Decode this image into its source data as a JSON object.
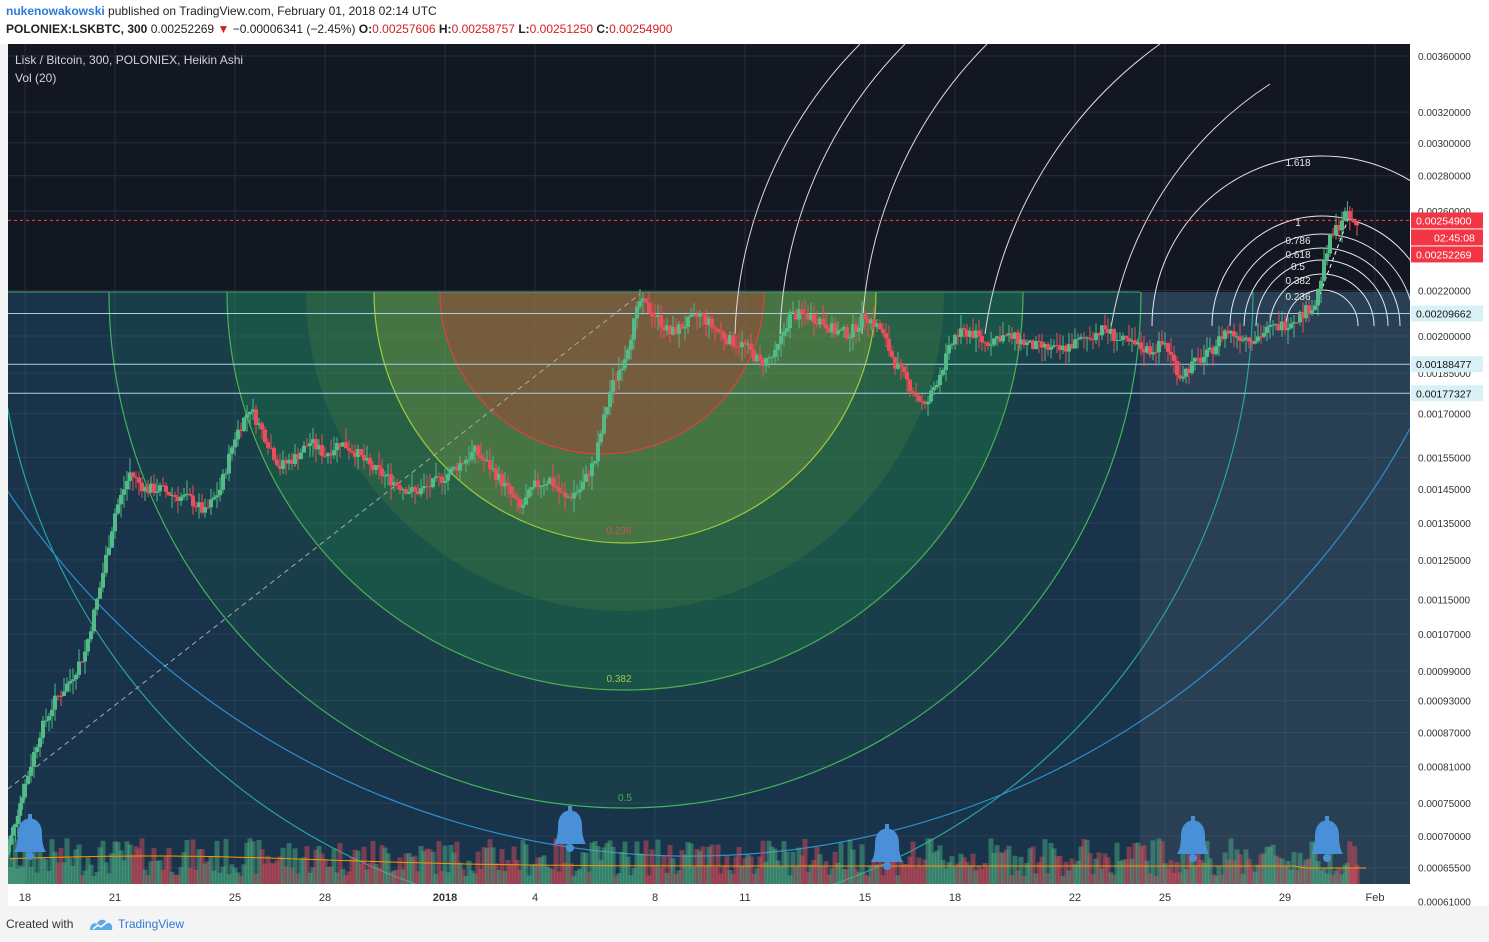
{
  "header": {
    "author": "nukenowakowski",
    "published_text": "published on TradingView.com, February 01, 2018 02:14 UTC",
    "symbol": "POLONIEX:LSKBTC, 300",
    "last": "0.00252269",
    "change_icon": "triangle-down-icon",
    "change": "−0.00006341 (−2.45%)",
    "o_label": "O:",
    "o_value": "0.00257606",
    "h_label": "H:",
    "h_value": "0.00258757",
    "l_label": "L:",
    "l_value": "0.00251250",
    "c_label": "C:",
    "c_value": "0.00254900"
  },
  "legend": {
    "title": "Lisk / Bitcoin, 300, POLONIEX, Heikin Ashi",
    "vol": "Vol (20)"
  },
  "footer": {
    "created_with": "Created with",
    "brand": "TradingView",
    "logo_icon": "tradingview-logo-icon"
  },
  "colors": {
    "background": "#131722",
    "up": "#53b987",
    "down": "#eb4d5c",
    "price_line": "#f23645",
    "axis_text": "#333333"
  },
  "chart_data": {
    "type": "candlestick",
    "title": "Lisk / Bitcoin, 300, POLONIEX, Heikin Ashi",
    "y_scale": "log",
    "ylim": [
      0.00056,
      0.0037
    ],
    "y_ticks": [
      "0.00360000",
      "0.00320000",
      "0.00300000",
      "0.00280000",
      "0.00260000",
      "0.00220000",
      "0.00200000",
      "0.00185000",
      "0.00170000",
      "0.00155000",
      "0.00145000",
      "0.00135000",
      "0.00125000",
      "0.00115000",
      "0.00107000",
      "0.00099000",
      "0.00093000",
      "0.00087000",
      "0.00081000",
      "0.00075000",
      "0.00070000",
      "0.00065500",
      "0.00061000"
    ],
    "x_ticks": [
      {
        "label": "18",
        "day": 18
      },
      {
        "label": "21",
        "day": 21
      },
      {
        "label": "25",
        "day": 25
      },
      {
        "label": "28",
        "day": 28
      },
      {
        "label": "2018",
        "day": 32,
        "bold": true
      },
      {
        "label": "4",
        "day": 35
      },
      {
        "label": "8",
        "day": 39
      },
      {
        "label": "11",
        "day": 42
      },
      {
        "label": "15",
        "day": 46
      },
      {
        "label": "18",
        "day": 49
      },
      {
        "label": "22",
        "day": 53
      },
      {
        "label": "25",
        "day": 56
      },
      {
        "label": "29",
        "day": 60
      },
      {
        "label": "Feb",
        "day": 63
      }
    ],
    "price_labels": [
      {
        "value": 0.002549,
        "text": "0.00254900",
        "kind": "close"
      },
      {
        "value": 0.002549,
        "text": "02:45:08",
        "kind": "countdown"
      },
      {
        "value": 0.00252269,
        "text": "0.00252269",
        "kind": "last"
      },
      {
        "value": 0.00209662,
        "text": "0.00209662",
        "kind": "level"
      },
      {
        "value": 0.00188477,
        "text": "0.00188477",
        "kind": "level"
      },
      {
        "value": 0.00177327,
        "text": "0.00177327",
        "kind": "level"
      }
    ],
    "fib_big": [
      "0.236",
      "0.382",
      "0.5"
    ],
    "fib_small": [
      "1.618",
      "1",
      "0.786",
      "0.618",
      "0.5",
      "0.382",
      "0.236"
    ],
    "series": [
      {
        "name": "Price (Heikin Ashi close, approx.)",
        "points": [
          [
            17.2,
            0.00065
          ],
          [
            17.6,
            0.00071
          ],
          [
            18,
            0.00078
          ],
          [
            18.5,
            0.00087
          ],
          [
            19,
            0.00093
          ],
          [
            19.5,
            0.00097
          ],
          [
            20,
            0.00103
          ],
          [
            20.5,
            0.00118
          ],
          [
            21,
            0.00138
          ],
          [
            21.5,
            0.0015
          ],
          [
            22,
            0.00145
          ],
          [
            22.5,
            0.00145
          ],
          [
            23,
            0.00143
          ],
          [
            23.5,
            0.00142
          ],
          [
            24,
            0.00138
          ],
          [
            24.5,
            0.00145
          ],
          [
            25,
            0.00162
          ],
          [
            25.5,
            0.00172
          ],
          [
            26,
            0.00162
          ],
          [
            26.5,
            0.00152
          ],
          [
            27,
            0.00155
          ],
          [
            27.5,
            0.0016
          ],
          [
            28,
            0.00156
          ],
          [
            28.5,
            0.0016
          ],
          [
            29,
            0.00157
          ],
          [
            29.5,
            0.00152
          ],
          [
            30,
            0.00149
          ],
          [
            30.5,
            0.00146
          ],
          [
            31,
            0.00144
          ],
          [
            31.5,
            0.00146
          ],
          [
            32,
            0.00149
          ],
          [
            32.5,
            0.00153
          ],
          [
            33,
            0.00157
          ],
          [
            33.5,
            0.00152
          ],
          [
            34,
            0.00146
          ],
          [
            34.5,
            0.00139
          ],
          [
            35,
            0.00146
          ],
          [
            35.5,
            0.00148
          ],
          [
            36,
            0.00142
          ],
          [
            36.5,
            0.00145
          ],
          [
            37,
            0.00154
          ],
          [
            37.5,
            0.00178
          ],
          [
            38,
            0.00192
          ],
          [
            38.5,
            0.00215
          ],
          [
            39,
            0.00209
          ],
          [
            39.5,
            0.00201
          ],
          [
            40,
            0.00205
          ],
          [
            40.5,
            0.00209
          ],
          [
            41,
            0.00203
          ],
          [
            41.5,
            0.00198
          ],
          [
            42,
            0.00196
          ],
          [
            42.5,
            0.00189
          ],
          [
            43,
            0.00192
          ],
          [
            43.5,
            0.00209
          ],
          [
            44,
            0.00209
          ],
          [
            44.5,
            0.00207
          ],
          [
            45,
            0.00202
          ],
          [
            45.5,
            0.00201
          ],
          [
            46,
            0.00209
          ],
          [
            46.5,
            0.00203
          ],
          [
            47,
            0.00189
          ],
          [
            47.5,
            0.0018
          ],
          [
            48,
            0.00172
          ],
          [
            48.5,
            0.00185
          ],
          [
            49,
            0.002
          ],
          [
            49.5,
            0.00202
          ],
          [
            50,
            0.00197
          ],
          [
            50.5,
            0.002
          ],
          [
            51,
            0.00199
          ],
          [
            51.5,
            0.00196
          ],
          [
            52,
            0.00195
          ],
          [
            52.5,
            0.00194
          ],
          [
            53,
            0.00197
          ],
          [
            53.5,
            0.002
          ],
          [
            54,
            0.00203
          ],
          [
            54.5,
            0.00198
          ],
          [
            55,
            0.00196
          ],
          [
            55.5,
            0.00194
          ],
          [
            56,
            0.00197
          ],
          [
            56.5,
            0.00184
          ],
          [
            57,
            0.00189
          ],
          [
            57.5,
            0.00193
          ],
          [
            58,
            0.00202
          ],
          [
            58.5,
            0.002
          ],
          [
            59,
            0.00199
          ],
          [
            59.5,
            0.00203
          ],
          [
            60,
            0.00205
          ],
          [
            60.5,
            0.00209
          ],
          [
            61,
            0.00214
          ],
          [
            61.5,
            0.00245
          ],
          [
            62,
            0.00258
          ],
          [
            62.4,
            0.00252
          ]
        ]
      }
    ]
  }
}
